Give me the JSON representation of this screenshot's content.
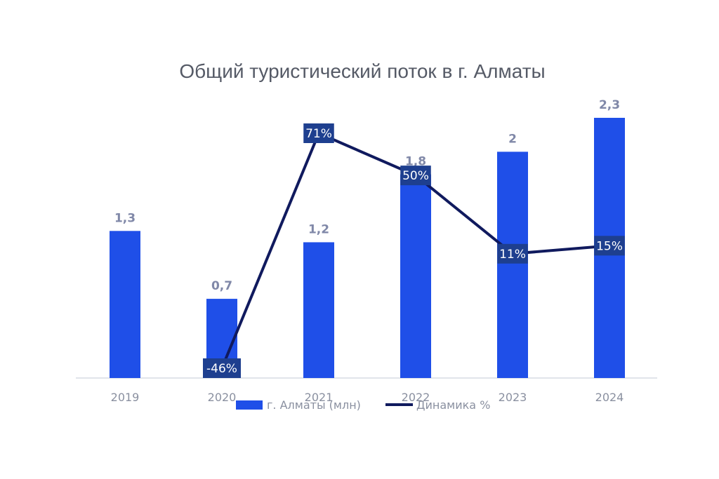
{
  "chart_data": {
    "type": "bar",
    "title": "Общий туристический поток в г. Алматы",
    "categories": [
      "2019",
      "2020",
      "2021",
      "2022",
      "2023",
      "2024"
    ],
    "series": [
      {
        "name": "г. Алматы (млн)",
        "type": "bar",
        "values": [
          1.3,
          0.7,
          1.2,
          1.8,
          2,
          2.3
        ],
        "labels": [
          "1,3",
          "0,7",
          "1,2",
          "1,8",
          "2",
          "2,3"
        ],
        "color": "#1f4fe8"
      },
      {
        "name": "Динамика %",
        "type": "line",
        "values": [
          null,
          -46,
          71,
          50,
          11,
          15
        ],
        "labels": [
          "",
          "-46%",
          "71%",
          "50%",
          "11%",
          "15%"
        ],
        "color": "#101a5e",
        "label_bg": "#1e3f8f"
      }
    ],
    "ylim": [
      0,
      2.3
    ],
    "y2lim": [
      -46,
      71
    ],
    "grid": false,
    "legend_position": "bottom"
  }
}
